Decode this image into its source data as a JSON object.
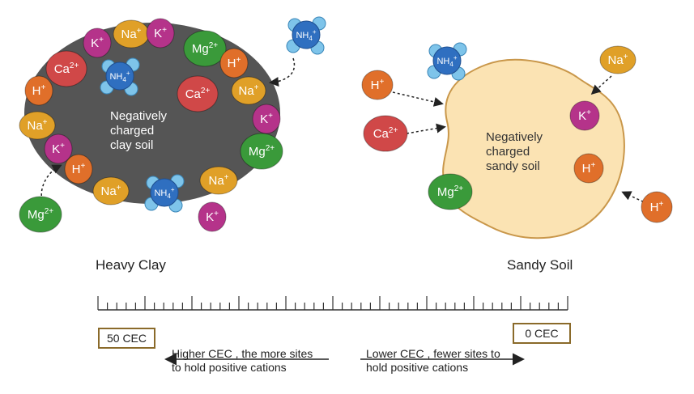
{
  "clay": {
    "body_text": [
      "Negatively",
      "charged",
      "clay soil"
    ],
    "label": "Heavy Clay",
    "ions": [
      {
        "base": "K",
        "sup": "+",
        "kind": "K"
      },
      {
        "base": "Na",
        "sup": "+",
        "kind": "Na"
      },
      {
        "base": "K",
        "sup": "+",
        "kind": "K"
      },
      {
        "base": "Mg",
        "sup": "2+",
        "kind": "Mg"
      },
      {
        "base": "Ca",
        "sup": "2+",
        "kind": "Ca"
      },
      {
        "base": "H",
        "sup": "+",
        "kind": "H"
      },
      {
        "base": "Ca",
        "sup": "2+",
        "kind": "Ca"
      },
      {
        "base": "H",
        "sup": "+",
        "kind": "H"
      },
      {
        "base": "Na",
        "sup": "+",
        "kind": "Na"
      },
      {
        "base": "Na",
        "sup": "+",
        "kind": "Na"
      },
      {
        "base": "K",
        "sup": "+",
        "kind": "K"
      },
      {
        "base": "K",
        "sup": "+",
        "kind": "K"
      },
      {
        "base": "Mg",
        "sup": "2+",
        "kind": "Mg"
      },
      {
        "base": "H",
        "sup": "+",
        "kind": "H"
      },
      {
        "base": "Na",
        "sup": "+",
        "kind": "Na"
      },
      {
        "base": "Na",
        "sup": "+",
        "kind": "Na"
      },
      {
        "base": "K",
        "sup": "+",
        "kind": "K"
      },
      {
        "base": "Mg",
        "sup": "2+",
        "kind": "Mg"
      }
    ],
    "ammonium": [
      {
        "base": "NH",
        "sub": "4",
        "sup": "+"
      },
      {
        "base": "NH",
        "sub": "4",
        "sup": "+"
      },
      {
        "base": "NH",
        "sub": "4",
        "sup": "+"
      }
    ]
  },
  "sand": {
    "body_text": [
      "Negatively",
      "charged",
      "sandy soil"
    ],
    "label": "Sandy Soil",
    "ions": [
      {
        "base": "H",
        "sup": "+",
        "kind": "H"
      },
      {
        "base": "Ca",
        "sup": "2+",
        "kind": "Ca"
      },
      {
        "base": "Na",
        "sup": "+",
        "kind": "Na"
      },
      {
        "base": "K",
        "sup": "+",
        "kind": "K"
      },
      {
        "base": "H",
        "sup": "+",
        "kind": "H"
      },
      {
        "base": "Mg",
        "sup": "2+",
        "kind": "Mg"
      },
      {
        "base": "H",
        "sup": "+",
        "kind": "H"
      }
    ],
    "ammonium": [
      {
        "base": "NH",
        "sub": "4",
        "sup": "+"
      }
    ]
  },
  "scale": {
    "left_value": "50 CEC",
    "right_value": "0 CEC",
    "left_caption": [
      "Higher CEC , the more sites",
      "to hold positive cations"
    ],
    "right_caption": [
      "Lower CEC , fewer sites to",
      "hold positive cations"
    ]
  },
  "colors": {
    "K": "#b5338a",
    "Na": "#e0a028",
    "Mg": "#3a9a3a",
    "Ca": "#d04848",
    "H": "#e06f2a",
    "NH4": "#2f6fc0",
    "NH4_atom": "#7ec4ea",
    "clay": "#555555",
    "sand_fill": "#fbe3b3",
    "sand_edge": "#c9974a"
  }
}
